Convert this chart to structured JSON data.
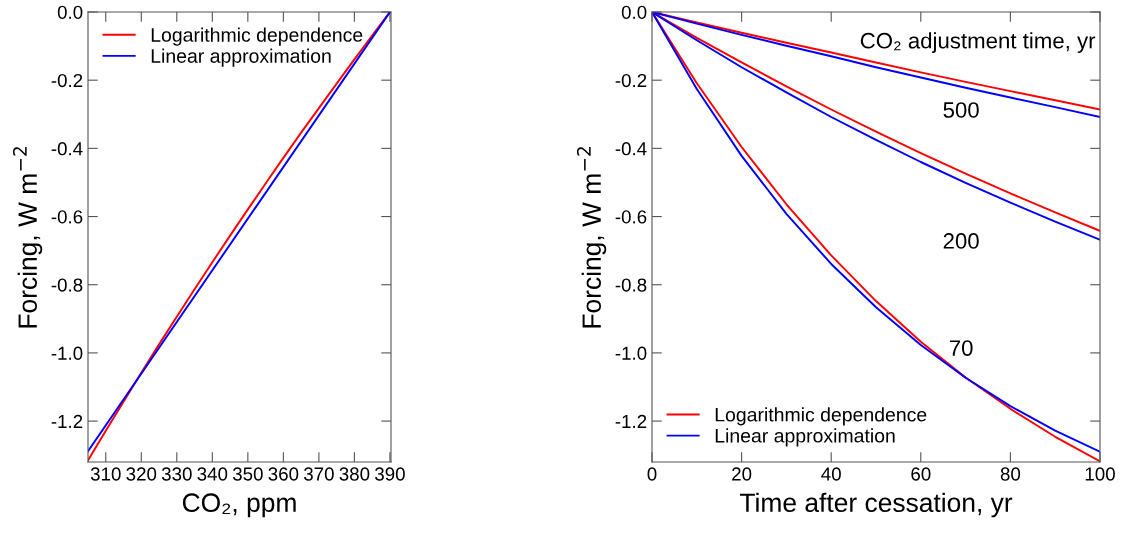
{
  "chart_data": [
    {
      "type": "line",
      "xlabel": "CO₂, ppm",
      "ylabel": "Forcing, W m$^{−2}$",
      "xlim": [
        305,
        390.3
      ],
      "ylim": [
        -1.32,
        0
      ],
      "xticks": [
        310,
        320,
        330,
        340,
        350,
        360,
        370,
        380,
        390
      ],
      "yticks": [
        {
          "value": 0,
          "label": "0.0"
        },
        {
          "value": -0.2,
          "label": "-0.2"
        },
        {
          "value": -0.4,
          "label": "-0.4"
        },
        {
          "value": -0.6,
          "label": "-0.6"
        },
        {
          "value": -0.8,
          "label": "-0.8"
        },
        {
          "value": -1.0,
          "label": "-1.0"
        },
        {
          "value": -1.2,
          "label": "-1.2"
        }
      ],
      "grid": false,
      "legend": "top left",
      "series": [
        {
          "name": "Logarithmic dependence",
          "color": "#ff0000",
          "x": [
            305,
            310,
            315,
            320,
            325,
            330,
            335,
            340,
            345,
            350,
            355,
            360,
            365,
            370,
            375,
            380,
            385,
            390
          ],
          "values": [
            -1.315,
            -1.228,
            -1.143,
            -1.058,
            -0.975,
            -0.894,
            -0.813,
            -0.734,
            -0.656,
            -0.579,
            -0.503,
            -0.428,
            -0.354,
            -0.282,
            -0.21,
            -0.139,
            -0.069,
            0
          ]
        },
        {
          "name": "Linear approximation",
          "color": "#0000ff",
          "x": [
            305,
            390
          ],
          "values": [
            -1.288,
            0
          ]
        }
      ]
    },
    {
      "type": "line",
      "xlabel": "Time after cessation, yr",
      "ylabel": "Forcing, W m$^{−2}$",
      "xlim": [
        0,
        100
      ],
      "ylim": [
        -1.32,
        0
      ],
      "xticks": [
        0,
        20,
        40,
        60,
        80,
        100
      ],
      "yticks": [
        {
          "value": 0,
          "label": "0.0"
        },
        {
          "value": -0.2,
          "label": "-0.2"
        },
        {
          "value": -0.4,
          "label": "-0.4"
        },
        {
          "value": -0.6,
          "label": "-0.6"
        },
        {
          "value": -0.8,
          "label": "-0.8"
        },
        {
          "value": -1.0,
          "label": "-1.0"
        },
        {
          "value": -1.2,
          "label": "-1.2"
        }
      ],
      "grid": false,
      "legend": "bottom left",
      "x": [
        0,
        10,
        20,
        30,
        40,
        50,
        60,
        70,
        80,
        90,
        100
      ],
      "series": [
        {
          "name": "Logarithmic dependence",
          "color": "#ff0000",
          "values": [
            0,
            -0.209,
            -0.396,
            -0.564,
            -0.714,
            -0.848,
            -0.967,
            -1.072,
            -1.164,
            -1.246,
            -1.318
          ]
        },
        {
          "name": "Linear approximation",
          "color": "#0000ff",
          "values": [
            0,
            -0.226,
            -0.422,
            -0.592,
            -0.739,
            -0.866,
            -0.977,
            -1.073,
            -1.156,
            -1.228,
            -1.29
          ]
        },
        {
          "color": "#ff0000",
          "values": [
            0,
            -0.076,
            -0.148,
            -0.218,
            -0.286,
            -0.351,
            -0.414,
            -0.474,
            -0.532,
            -0.588,
            -0.642
          ]
        },
        {
          "color": "#0000ff",
          "values": [
            0,
            -0.083,
            -0.162,
            -0.236,
            -0.308,
            -0.375,
            -0.44,
            -0.501,
            -0.559,
            -0.615,
            -0.668
          ]
        },
        {
          "color": "#ff0000",
          "values": [
            0,
            -0.031,
            -0.061,
            -0.09,
            -0.119,
            -0.148,
            -0.177,
            -0.205,
            -0.232,
            -0.259,
            -0.286
          ]
        },
        {
          "color": "#0000ff",
          "values": [
            0,
            -0.034,
            -0.067,
            -0.099,
            -0.13,
            -0.162,
            -0.192,
            -0.222,
            -0.251,
            -0.279,
            -0.308
          ]
        }
      ],
      "annotations": [
        "CO₂ adjustment time, yr",
        "500",
        "200",
        "70"
      ]
    }
  ]
}
